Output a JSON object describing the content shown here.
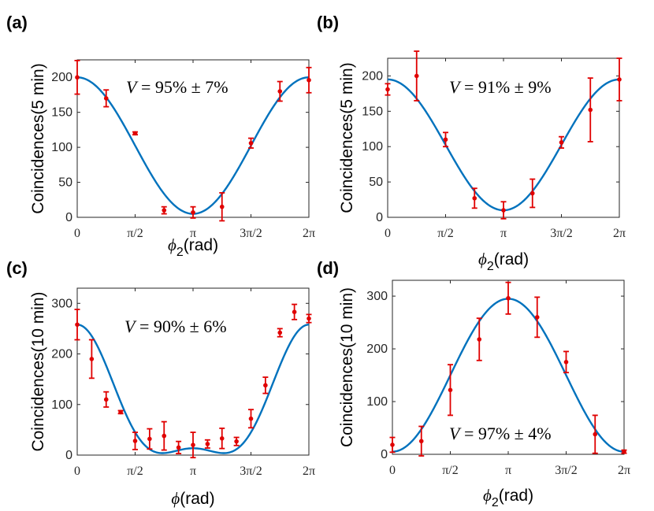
{
  "colors": {
    "fit": "#0072BD",
    "data": "#E00000",
    "axis": "#262626"
  },
  "x_tick_labels": [
    "0",
    "π/2",
    "π",
    "3π/2",
    "2π"
  ],
  "chart_data": [
    {
      "panel": "(a)",
      "type": "scatter",
      "ylabel": "Coincidences(5 min)",
      "xlabel_symbol": "ϕ",
      "xlabel_sub": "2",
      "xlabel_unit": "(rad)",
      "annotation": {
        "prefix": "V",
        "text": " = 95% ± 7%"
      },
      "xlim": [
        0,
        6.2832
      ],
      "ylim": [
        0,
        225
      ],
      "yticks": [
        0,
        50,
        100,
        150,
        200
      ],
      "x": [
        0,
        0.7854,
        1.5708,
        2.3562,
        3.1416,
        3.927,
        4.7124,
        5.4978,
        6.2832
      ],
      "y": [
        200,
        170,
        120,
        10,
        7,
        15,
        106,
        180,
        196
      ],
      "yerr": [
        24,
        12,
        2,
        5,
        8,
        20,
        7,
        14,
        18
      ],
      "fit": {
        "type": "cosine",
        "center": 102.5,
        "amplitude": 97.5,
        "period_factor": 1,
        "phase": 0
      }
    },
    {
      "panel": "(b)",
      "type": "scatter",
      "ylabel": "Coincidences(5 min)",
      "xlabel_symbol": "ϕ",
      "xlabel_sub": "2",
      "xlabel_unit": "(rad)",
      "annotation": {
        "prefix": "V",
        "text": " = 91% ± 9%"
      },
      "xlim": [
        0,
        6.2832
      ],
      "ylim": [
        0,
        225
      ],
      "yticks": [
        0,
        50,
        100,
        150,
        200
      ],
      "x": [
        0,
        0.7854,
        1.5708,
        2.3562,
        3.1416,
        3.927,
        4.7124,
        5.4978,
        6.2832
      ],
      "y": [
        181,
        200,
        110,
        27,
        10,
        34,
        106,
        152,
        195
      ],
      "yerr": [
        8,
        35,
        10,
        14,
        12,
        20,
        8,
        45,
        30
      ],
      "fit": {
        "type": "cosine",
        "center": 102.5,
        "amplitude": 92.5,
        "period_factor": 1,
        "phase": 0
      }
    },
    {
      "panel": "(c)",
      "type": "scatter",
      "ylabel": "Coincidences(10 min)",
      "xlabel_symbol": "ϕ",
      "xlabel_sub": "",
      "xlabel_unit": "(rad)",
      "annotation": {
        "prefix": "V",
        "text": " = 90% ± 6%"
      },
      "xlim": [
        0,
        6.2832
      ],
      "ylim": [
        0,
        330
      ],
      "yticks": [
        0,
        100,
        200,
        300
      ],
      "x": [
        0,
        0.3927,
        0.7854,
        1.1781,
        1.5708,
        1.9635,
        2.3562,
        2.7489,
        3.1416,
        3.5343,
        3.927,
        4.3197,
        4.7124,
        5.1051,
        5.4978,
        5.8905,
        6.2832
      ],
      "y": [
        258,
        190,
        110,
        85,
        28,
        32,
        38,
        15,
        20,
        22,
        33,
        27,
        72,
        138,
        242,
        283,
        270
      ],
      "yerr": [
        30,
        38,
        15,
        3,
        17,
        20,
        28,
        12,
        25,
        8,
        20,
        8,
        18,
        16,
        8,
        15,
        8
      ],
      "fit": {
        "type": "two-harmonic",
        "c0": 90.42,
        "c1": 122.25,
        "c2": 45.33
      }
    },
    {
      "panel": "(d)",
      "type": "scatter",
      "ylabel": "Coincidences(10 min)",
      "xlabel_symbol": "ϕ",
      "xlabel_sub": "2",
      "xlabel_unit": "(rad)",
      "annotation": {
        "prefix": "V",
        "text": " = 97% ± 4%"
      },
      "xlim": [
        0,
        6.2832
      ],
      "ylim": [
        0,
        330
      ],
      "yticks": [
        0,
        100,
        200,
        300
      ],
      "x": [
        0,
        0.7854,
        1.5708,
        2.3562,
        3.1416,
        3.927,
        4.7124,
        5.4978,
        6.2832
      ],
      "y": [
        18,
        25,
        122,
        218,
        296,
        260,
        175,
        38,
        5
      ],
      "yerr": [
        14,
        28,
        48,
        40,
        30,
        38,
        20,
        36,
        3
      ],
      "fit": {
        "type": "cosine",
        "center": 150,
        "amplitude": -145,
        "period_factor": 1,
        "phase": 0
      }
    }
  ]
}
